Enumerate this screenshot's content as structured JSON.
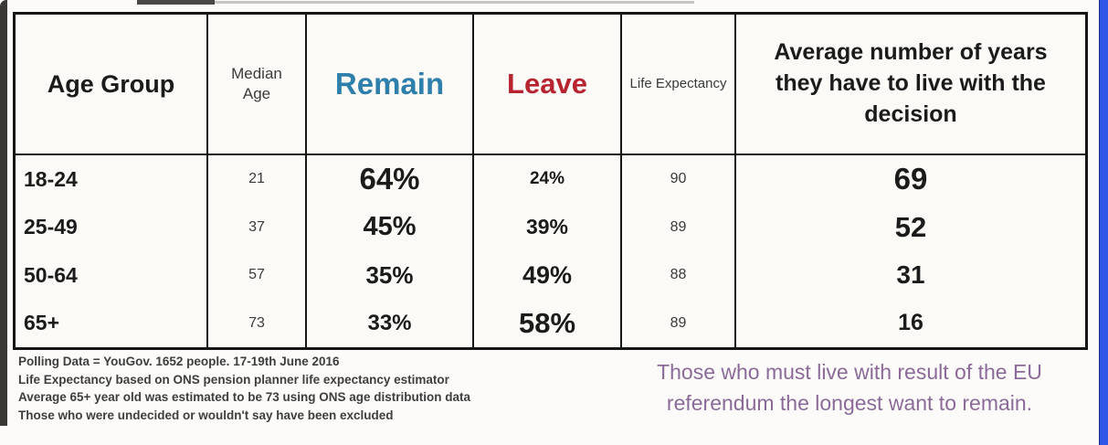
{
  "header": {
    "age_group": "Age Group",
    "median_age": "Median Age",
    "remain": "Remain",
    "leave": "Leave",
    "life_expectancy": "Life Expectancy",
    "years": "Average number of years they have to live with the decision"
  },
  "rows": [
    {
      "age_group": "18-24",
      "median_age": "21",
      "remain": "64%",
      "leave": "24%",
      "life_expectancy": "90",
      "years": "69"
    },
    {
      "age_group": "25-49",
      "median_age": "37",
      "remain": "45%",
      "leave": "39%",
      "life_expectancy": "89",
      "years": "52"
    },
    {
      "age_group": "50-64",
      "median_age": "57",
      "remain": "35%",
      "leave": "49%",
      "life_expectancy": "88",
      "years": "31"
    },
    {
      "age_group": "65+",
      "median_age": "73",
      "remain": "33%",
      "leave": "58%",
      "life_expectancy": "89",
      "years": "16"
    }
  ],
  "footnotes": {
    "line1": "Polling Data = YouGov. 1652 people. 17-19th June 2016",
    "line2": "Life Expectancy based on ONS pension planner life expectancy estimator",
    "line3": "Average 65+ year old was estimated to be 73 using ONS age distribution data",
    "line4": "Those who were undecided or wouldn't say have been excluded"
  },
  "callout": {
    "text": "Those who must live with result of the EU referendum the longest want to remain."
  },
  "colors": {
    "remain": "#2e7fab",
    "leave": "#b82330",
    "callout_purple": "#8b6a99",
    "frame_blue": "#2e57e8",
    "border_black": "#161616"
  },
  "chart_data": {
    "type": "table",
    "columns": [
      "Age Group",
      "Median Age",
      "Remain",
      "Leave",
      "Life Expectancy",
      "Average number of years they have to live with the decision"
    ],
    "rows": [
      [
        "18-24",
        "21",
        "64%",
        "24%",
        "90",
        "69"
      ],
      [
        "25-49",
        "37",
        "45%",
        "39%",
        "89",
        "52"
      ],
      [
        "50-64",
        "57",
        "35%",
        "49%",
        "88",
        "31"
      ],
      [
        "65+",
        "73",
        "33%",
        "58%",
        "89",
        "16"
      ]
    ],
    "notes": [
      "Polling Data = YouGov. 1652 people. 17-19th June 2016",
      "Life Expectancy based on ONS pension planner life expectancy estimator",
      "Average 65+ year old was estimated to be 73 using ONS age distribution data",
      "Those who were undecided or wouldn't say have been excluded"
    ],
    "annotation": "Those who must live with result of the EU referendum the longest want to remain."
  }
}
